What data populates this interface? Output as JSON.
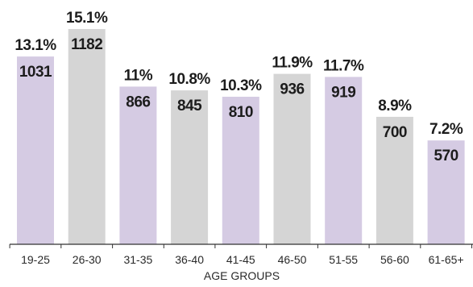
{
  "chart_data": {
    "type": "bar",
    "title": "",
    "xlabel": "AGE GROUPS",
    "ylabel": "",
    "categories": [
      "19-25",
      "26-30",
      "31-35",
      "36-40",
      "41-45",
      "46-50",
      "51-55",
      "56-60",
      "61-65+"
    ],
    "values": [
      1031,
      1182,
      866,
      845,
      810,
      936,
      919,
      700,
      570
    ],
    "percent_labels": [
      "13.1%",
      "15.1%",
      "11%",
      "10.8%",
      "10.3%",
      "11.9%",
      "11.7%",
      "8.9%",
      "7.2%"
    ],
    "ylim": [
      0,
      1182
    ],
    "grid": false,
    "legend": "none",
    "colors": {
      "odd": "#d5cbe3",
      "even": "#d5d5d5",
      "axis": "#333333",
      "text": "#1c1c1c"
    }
  }
}
